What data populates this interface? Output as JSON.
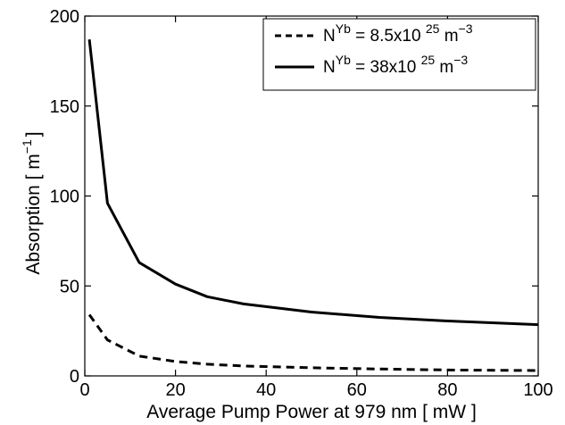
{
  "chart_data": {
    "type": "line",
    "title": "",
    "xlabel": "Average Pump Power at 979 nm [ mW ]",
    "ylabel": "Absorption [ m",
    "ylabel_sup": "−1",
    "ylabel_close": "]",
    "xlim": [
      0,
      100
    ],
    "ylim": [
      0,
      200
    ],
    "xticks": [
      0,
      20,
      40,
      60,
      80,
      100
    ],
    "xtick_labels": [
      "0",
      "20",
      "40",
      "60",
      "80",
      "100"
    ],
    "yticks": [
      0,
      50,
      100,
      150,
      200
    ],
    "ytick_labels": [
      "0",
      "50",
      "100",
      "150",
      "200"
    ],
    "grid": false,
    "legend_position": "top-right",
    "series": [
      {
        "name": "N^Yb = 8.5x10^25 m^-3",
        "legend": {
          "base": "N",
          "sup1": "Yb",
          "mid": " = 8.5x10 ",
          "sup2": "25",
          "unit": " m",
          "sup3": "−3"
        },
        "style": "dashed",
        "x": [
          1,
          5,
          12,
          20,
          27,
          35,
          50,
          65,
          80,
          100
        ],
        "y": [
          34,
          20,
          11,
          8,
          6.5,
          5.5,
          4.5,
          3.8,
          3.3,
          3
        ]
      },
      {
        "name": "N^Yb = 38x10^25 m^-3",
        "legend": {
          "base": "N",
          "sup1": "Yb",
          "mid": " = 38x10 ",
          "sup2": "25",
          "unit": " m",
          "sup3": "−3"
        },
        "style": "solid",
        "x": [
          1,
          5,
          12,
          20,
          27,
          35,
          50,
          65,
          80,
          100
        ],
        "y": [
          187,
          96,
          63,
          51,
          44,
          40,
          35.5,
          32.5,
          30.5,
          28.5
        ]
      }
    ]
  }
}
